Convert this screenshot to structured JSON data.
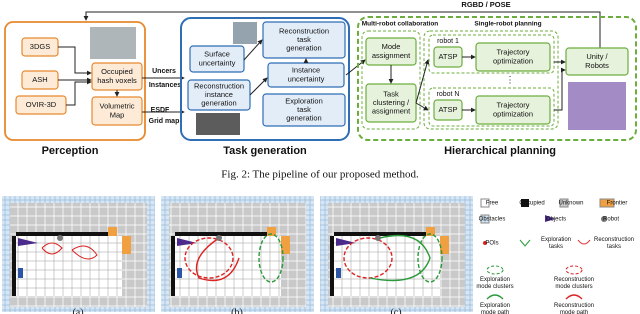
{
  "perception": {
    "label": "Perception",
    "inputs": [
      "3DGS",
      "ASH",
      "OVIR-3D"
    ],
    "occupied": [
      "Occupied",
      "hash voxels"
    ],
    "volumetric": [
      "Volumetric",
      "Map"
    ]
  },
  "links": {
    "uncers": "Uncers",
    "instances": "Instances",
    "esdf": "ESDF",
    "grid_map": "Grid map",
    "rgbd_pose": "RGBD / POSE"
  },
  "task_generation": {
    "label": "Task generation",
    "surface": [
      "Surface",
      "uncertainty"
    ],
    "instance_gen": [
      "Reconstruction",
      "instance",
      "generation"
    ],
    "recon_task": [
      "Reconstruction",
      "task",
      "generation"
    ],
    "instance_unc": [
      "Instance",
      "uncertainty"
    ],
    "explore_task": [
      "Exploration",
      "task",
      "generation"
    ]
  },
  "planning": {
    "label": "Hierarchical planning",
    "multi": "Multi-robot collaboration",
    "single": "Single-robot planning",
    "mode": [
      "Mode",
      "assignment"
    ],
    "cluster": [
      "Task",
      "clustering /",
      "assignment"
    ],
    "robots": [
      {
        "name": "robot 1",
        "atsp": "ATSP",
        "traj": [
          "Trajectory",
          "optimization"
        ]
      },
      {
        "name": "robot N",
        "atsp": "ATSP",
        "traj": [
          "Trajectory",
          "optimization"
        ]
      }
    ],
    "unity": [
      "Unity /",
      "Robots"
    ]
  },
  "caption": "Fig. 2: The pipeline of our proposed method.",
  "panels": [
    "(a)",
    "(b)",
    "(c)"
  ],
  "legend": [
    [
      "Free"
    ],
    [
      "Occupied"
    ],
    [
      "Unknown"
    ],
    [
      "Frontier"
    ],
    [
      "Obstacles"
    ],
    [
      "Objects"
    ],
    [
      "Robot"
    ],
    [
      "POIs"
    ],
    [
      "Exploration",
      "tasks"
    ],
    [
      "Reconstruction",
      "tasks"
    ],
    [
      "Exploration",
      "mode clusters"
    ],
    [
      "Reconstruction",
      "mode clusters"
    ],
    [
      "Exploration",
      "mode path"
    ],
    [
      "Reconstruction",
      "mode path"
    ]
  ]
}
